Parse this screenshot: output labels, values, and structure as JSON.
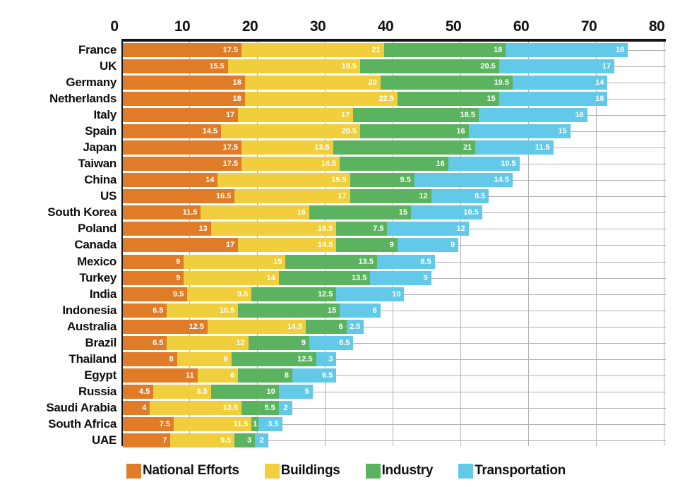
{
  "chart_data": {
    "type": "bar",
    "stacked": true,
    "orientation": "horizontal",
    "title": "",
    "xlabel": "",
    "ylabel": "",
    "xlim": [
      0,
      80
    ],
    "x_ticks": [
      0,
      10,
      20,
      30,
      40,
      50,
      60,
      70,
      80
    ],
    "axis_position": "top",
    "grid": true,
    "legend_position": "bottom",
    "categories": [
      "France",
      "UK",
      "Germany",
      "Netherlands",
      "Italy",
      "Spain",
      "Japan",
      "Taiwan",
      "China",
      "US",
      "South Korea",
      "Poland",
      "Canada",
      "Mexico",
      "Turkey",
      "India",
      "Indonesia",
      "Australia",
      "Brazil",
      "Thailand",
      "Egypt",
      "Russia",
      "Saudi Arabia",
      "South Africa",
      "UAE"
    ],
    "series": [
      {
        "name": "National Efforts",
        "color": "#E07C27",
        "values": [
          17.5,
          15.5,
          18,
          18,
          17,
          14.5,
          17.5,
          17.5,
          14,
          16.5,
          11.5,
          13,
          17,
          9,
          9,
          9.5,
          6.5,
          12.5,
          6.5,
          8,
          11,
          4.5,
          4,
          7.5,
          7
        ]
      },
      {
        "name": "Buildings",
        "color": "#F0CE3C",
        "values": [
          21,
          19.5,
          20,
          22.5,
          17,
          20.5,
          13.5,
          14.5,
          19.5,
          17,
          16,
          18.5,
          14.5,
          15,
          14,
          9.5,
          10.5,
          14.5,
          12,
          8,
          6,
          8.5,
          13.5,
          11.5,
          9.5
        ]
      },
      {
        "name": "Industry",
        "color": "#5BB35F",
        "values": [
          18,
          20.5,
          19.5,
          15,
          18.5,
          16,
          21,
          16,
          9.5,
          12,
          15,
          7.5,
          9,
          13.5,
          13.5,
          12.5,
          15,
          6,
          9,
          12.5,
          8,
          10,
          5.5,
          1,
          3
        ]
      },
      {
        "name": "Transportation",
        "color": "#63C9E9",
        "values": [
          18,
          17,
          14,
          16,
          16,
          15,
          11.5,
          10.5,
          14.5,
          8.5,
          10.5,
          12,
          9,
          8.5,
          9,
          10,
          6,
          2.5,
          6.5,
          3,
          6.5,
          5,
          2,
          3.5,
          2
        ]
      }
    ],
    "colors": {
      "grid": "#b0b0b0",
      "axis": "#141414",
      "value_label": "#ffffff"
    }
  }
}
